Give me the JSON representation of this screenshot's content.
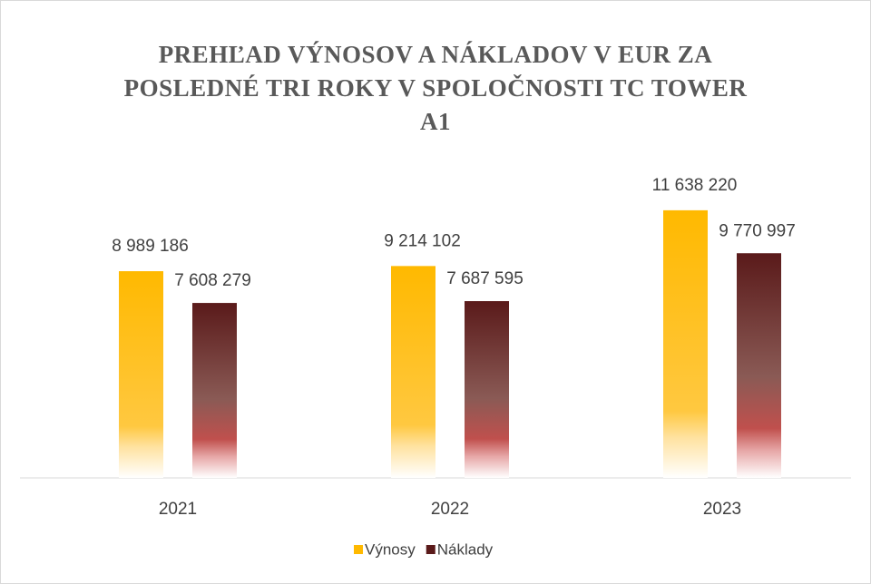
{
  "chart_data": {
    "type": "bar",
    "title": "PREHĽAD VÝNOSOV A NÁKLADOV V EUR ZA POSLEDNÉ TRI ROKY V SPOLOČNOSTI TC TOWER A1",
    "categories": [
      "2021",
      "2022",
      "2023"
    ],
    "series": [
      {
        "name": "Výnosy",
        "color": "#ffb900",
        "values": [
          8989186,
          9214102,
          11638220
        ],
        "value_labels": [
          "8 989 186",
          "9 214 102",
          "11 638 220"
        ]
      },
      {
        "name": "Náklady",
        "color": "#5a1a1a",
        "values": [
          7608279,
          7687595,
          9770997
        ],
        "value_labels": [
          "7 608 279",
          "7 687 595",
          "9 770 997"
        ]
      }
    ],
    "ylim": [
      0,
      14000000
    ]
  }
}
